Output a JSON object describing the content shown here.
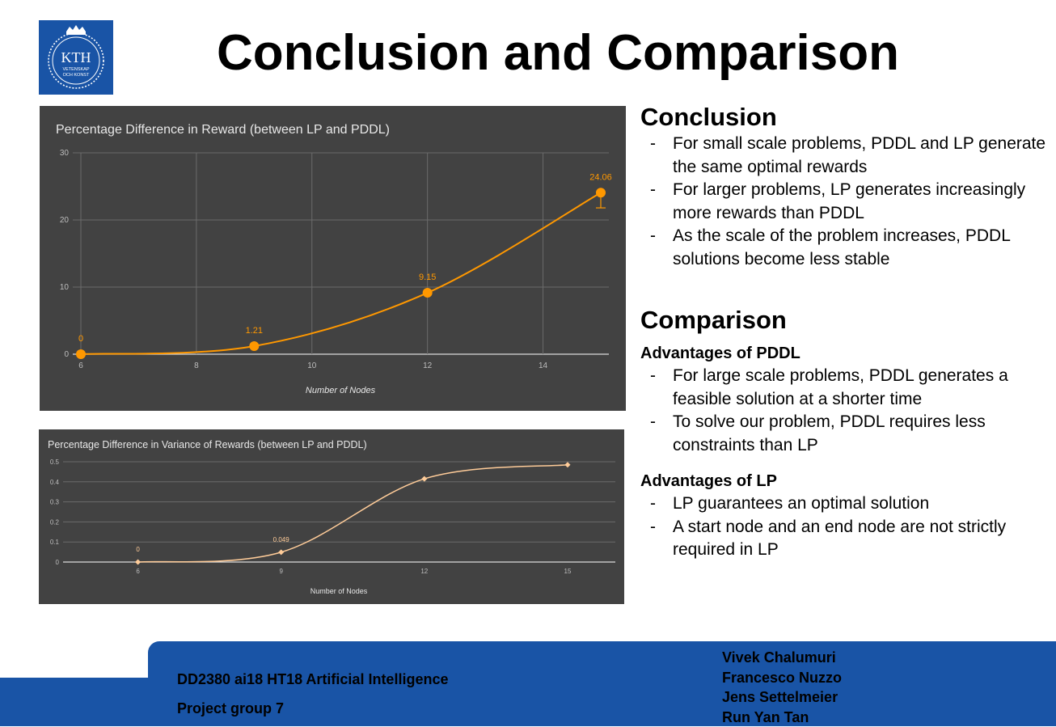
{
  "logo": {
    "text": "KTH",
    "motto_line1": "VETENSKAP",
    "motto_line2": "OCH KONST"
  },
  "page_title": "Conclusion and Comparison",
  "chart_data": [
    {
      "type": "line",
      "title": "Percentage Difference in Reward (between LP and PDDL)",
      "xlabel": "Number of Nodes",
      "ylabel": "",
      "x": [
        6,
        9,
        12,
        15
      ],
      "values": [
        0,
        1.21,
        9.15,
        24.06
      ],
      "data_labels": [
        "0",
        "1.21",
        "9.15",
        "24.06"
      ],
      "error_bar": {
        "x": 15,
        "low": 21.8,
        "high": 24.06
      },
      "xlim": [
        6,
        15
      ],
      "ylim": [
        0,
        30
      ],
      "xticks": [
        "6",
        "8",
        "10",
        "12",
        "14"
      ],
      "xtick_values": [
        6,
        8,
        10,
        12,
        14
      ],
      "yticks": [
        "0",
        "10",
        "20",
        "30"
      ],
      "ytick_values": [
        0,
        10,
        20,
        30
      ],
      "grid": true,
      "smooth": true,
      "colors": {
        "bg": "#424242",
        "line": "#ff9800",
        "label": "#ff9800",
        "grid": "#6b6b6b",
        "text": "#e8e8e8",
        "tick": "#bdbdbd"
      }
    },
    {
      "type": "line",
      "title": "Percentage Difference in Variance of Rewards (between LP and PDDL)",
      "xlabel": "Number of Nodes",
      "ylabel": "",
      "x": [
        6,
        9,
        12,
        15
      ],
      "values": [
        0,
        0.049,
        0.415,
        0.485
      ],
      "data_labels": [
        "0",
        "0.049",
        "",
        ""
      ],
      "xlim": [
        4.5,
        16
      ],
      "ylim": [
        0,
        0.5
      ],
      "xticks": [
        "6",
        "9",
        "12",
        "15"
      ],
      "xtick_values": [
        6,
        9,
        12,
        15
      ],
      "yticks": [
        "0",
        "0.1",
        "0.2",
        "0.3",
        "0.4",
        "0.5"
      ],
      "ytick_values": [
        0,
        0.1,
        0.2,
        0.3,
        0.4,
        0.5
      ],
      "grid": true,
      "smooth": true,
      "colors": {
        "bg": "#424242",
        "line": "#ffcc99",
        "label": "#ffcc99",
        "grid": "#6b6b6b",
        "text": "#e8e8e8",
        "tick": "#bdbdbd"
      }
    }
  ],
  "conclusion": {
    "heading": "Conclusion",
    "items": [
      "For small scale problems, PDDL and LP generate the same optimal rewards",
      "For larger problems, LP generates increasingly more rewards than PDDL",
      "As the scale of the problem increases, PDDL solutions become less stable"
    ]
  },
  "comparison": {
    "heading": "Comparison",
    "pddl_heading": "Advantages of PDDL",
    "pddl_items": [
      "For large scale problems, PDDL generates a feasible solution at a shorter time",
      "To solve our problem, PDDL requires less constraints than LP"
    ],
    "lp_heading": "Advantages of LP",
    "lp_items": [
      "LP guarantees an optimal solution",
      "A start node and an end node are not strictly required in LP"
    ]
  },
  "footer": {
    "course": "DD2380 ai18 HT18 Artificial Intelligence",
    "group": "Project group 7",
    "authors": [
      "Vivek Chalumuri",
      "Francesco Nuzzo",
      "Jens Settelmeier",
      "Run Yan Tan"
    ],
    "colors": {
      "brand": "#1954a6"
    }
  }
}
